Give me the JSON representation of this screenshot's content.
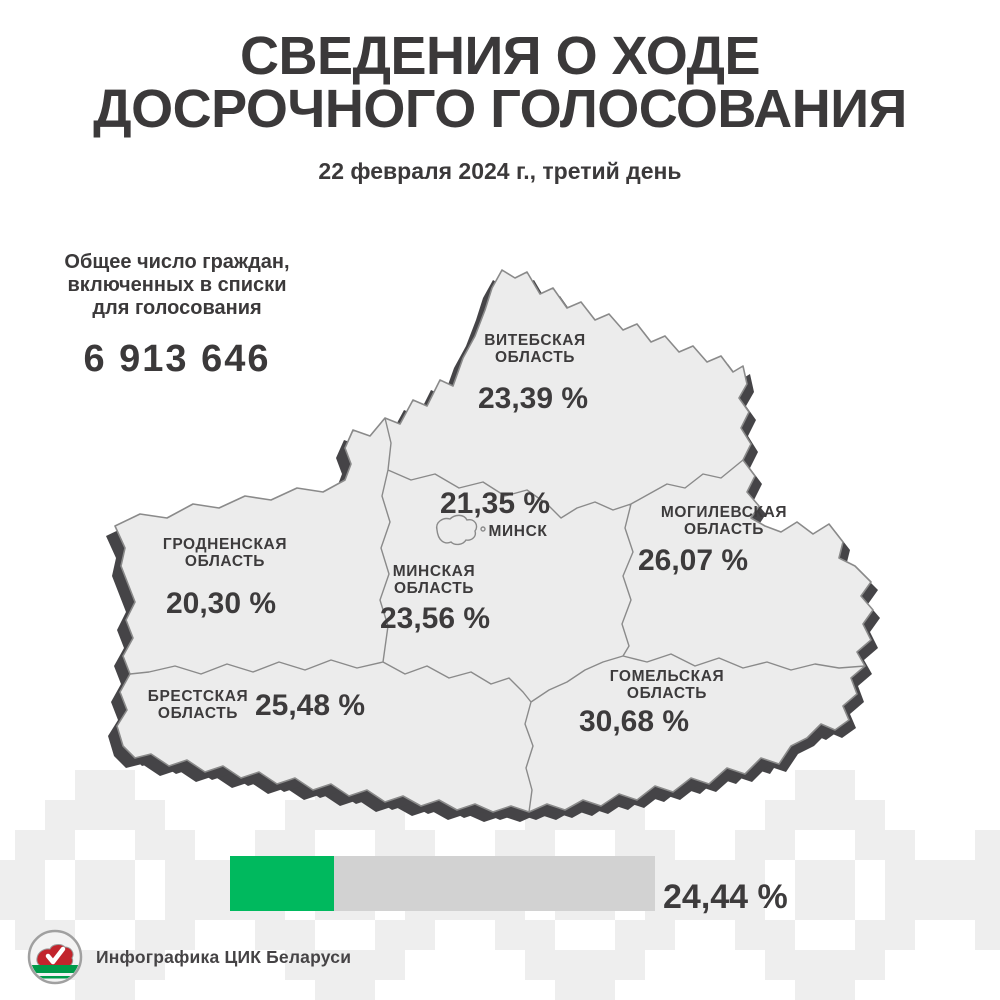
{
  "title": {
    "line1": "СВЕДЕНИЯ О ХОДЕ",
    "line2": "ДОСРОЧНОГО ГОЛОСОВАНИЯ"
  },
  "subtitle": "22 февраля 2024 г., третий день",
  "total_voters": {
    "label_line1": "Общее число граждан,",
    "label_line2": "включенных в списки",
    "label_line3": "для голосования",
    "value": "6 913 646"
  },
  "regions": [
    {
      "id": "vitebsk",
      "name_line1": "ВИТЕБСКАЯ",
      "name_line2": "ОБЛАСТЬ",
      "value": "23,39 %"
    },
    {
      "id": "minsk-city",
      "name_line1": "МИНСК",
      "name_line2": "",
      "value": "21,35 %"
    },
    {
      "id": "mogilev",
      "name_line1": "МОГИЛЕВСКАЯ",
      "name_line2": "ОБЛАСТЬ",
      "value": "26,07 %"
    },
    {
      "id": "grodno",
      "name_line1": "ГРОДНЕНСКАЯ",
      "name_line2": "ОБЛАСТЬ",
      "value": "20,30 %"
    },
    {
      "id": "minsk-region",
      "name_line1": "МИНСКАЯ",
      "name_line2": "ОБЛАСТЬ",
      "value": "23,56 %"
    },
    {
      "id": "brest",
      "name_line1": "БРЕСТСКАЯ",
      "name_line2": "ОБЛАСТЬ",
      "value": "25,48 %"
    },
    {
      "id": "gomel",
      "name_line1": "ГОМЕЛЬСКАЯ",
      "name_line2": "ОБЛАСТЬ",
      "value": "30,68 %"
    }
  ],
  "progress": {
    "value": "24,44 %",
    "percent": 24.44
  },
  "footer": {
    "credit": "Инфографика ЦИК Беларуси",
    "logo": "cec-belarus-logo"
  },
  "colors": {
    "accent_green": "#00b95e",
    "bar_track": "#d2d2d2",
    "text": "#3d3b3c",
    "map_fill": "#ececec",
    "map_border": "#8a8a8a",
    "map_shadow": "#454447",
    "ornament": "#eeeeee",
    "logo_red": "#c2242c",
    "logo_green": "#009a49"
  },
  "chart_data": {
    "type": "heatmap",
    "subtype": "choropleth-map-infographic",
    "title": "СВЕДЕНИЯ О ХОДЕ ДОСРОЧНОГО ГОЛОСОВАНИЯ",
    "subtitle": "22 февраля 2024 г., третий день",
    "categories": [
      "Витебская область",
      "Минск",
      "Могилевская область",
      "Гродненская область",
      "Минская область",
      "Брестская область",
      "Гомельская область"
    ],
    "values": [
      23.39,
      21.35,
      26.07,
      20.3,
      23.56,
      25.48,
      30.68
    ],
    "units": "percent (turnout of early voting)",
    "total_registered_voters": 6913646,
    "overall_turnout_percent": 24.44,
    "legend_position": "none",
    "grid": false
  }
}
